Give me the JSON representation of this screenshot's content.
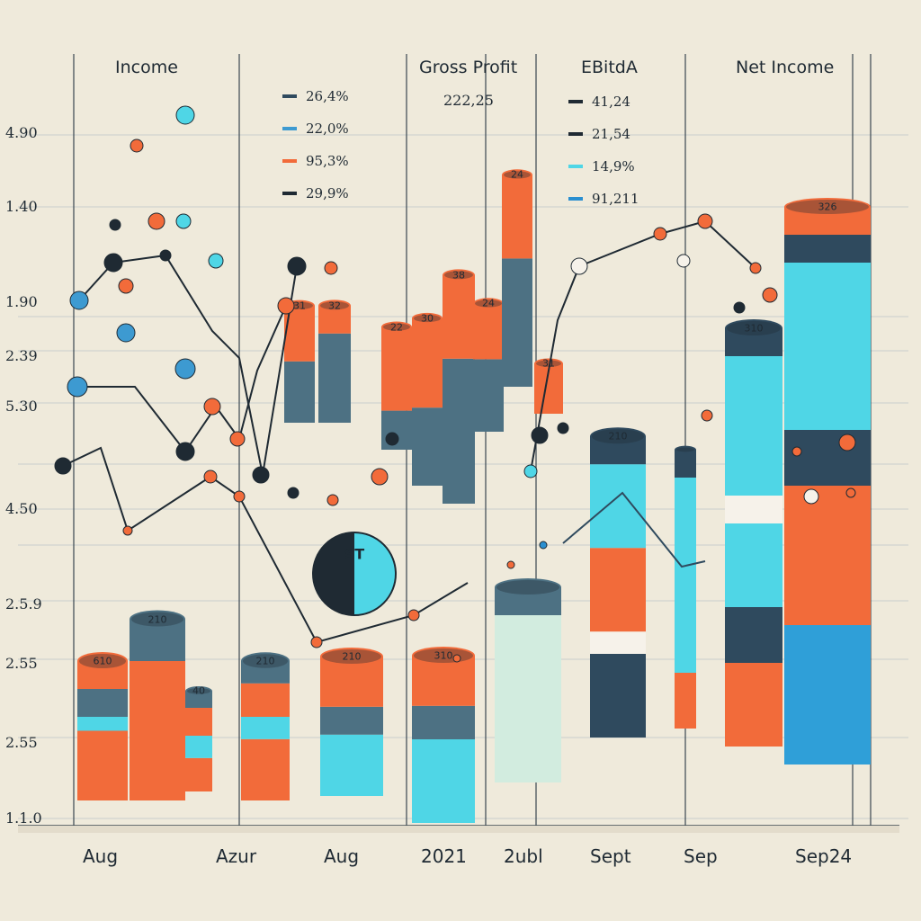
{
  "chart_data": {
    "type": "bar",
    "panels": [
      "Income",
      "Gross Profit",
      "EBitdA",
      "Net Income"
    ],
    "panel_value": "222,25",
    "y_tick_labels": [
      "4.90",
      "1.40",
      "1.90",
      "2.39",
      "5.30",
      "4.50",
      "2.5.9",
      "2.55",
      "2.55",
      "1.1.0"
    ],
    "x_tick_labels": [
      "Aug",
      "Azur",
      "Aug",
      "2021",
      "2ubl",
      "Sept",
      "Sep",
      "Sep24"
    ],
    "legend_left": [
      {
        "label": "26,4%",
        "color": "#2f4a5e"
      },
      {
        "label": "22,0%",
        "color": "#3d9ad1"
      },
      {
        "label": "95,3%",
        "color": "#f26b3a"
      },
      {
        "label": "29,9%",
        "color": "#1f2a33"
      }
    ],
    "legend_right": [
      {
        "label": "41,24",
        "color": "#1f2a33"
      },
      {
        "label": "21,54",
        "color": "#1f2a33"
      },
      {
        "label": "14,9%",
        "color": "#4fd6e6"
      },
      {
        "label": "91,211",
        "color": "#2a8fd0"
      }
    ],
    "bars": [
      {
        "x": "Aug",
        "label": "610",
        "segments": [
          {
            "value": 25,
            "color": "#f26b3a"
          },
          {
            "value": 5,
            "color": "#4fd6e6"
          },
          {
            "value": 10,
            "color": "#4d7183"
          },
          {
            "value": 10,
            "color": "#f26b3a"
          }
        ]
      },
      {
        "x": "Aug",
        "label": "210",
        "segments": [
          {
            "value": 50,
            "color": "#f26b3a"
          },
          {
            "value": 5,
            "color": "#4d7183"
          },
          {
            "value": 10,
            "color": "#4d7183"
          }
        ]
      },
      {
        "x": "Azur",
        "label": "40",
        "segments": [
          {
            "value": 12,
            "color": "#f26b3a"
          },
          {
            "value": 8,
            "color": "#4fd6e6"
          },
          {
            "value": 10,
            "color": "#f26b3a"
          },
          {
            "value": 6,
            "color": "#4d7183"
          }
        ]
      },
      {
        "x": "Azur",
        "label": "210",
        "segments": [
          {
            "value": 22,
            "color": "#f26b3a"
          },
          {
            "value": 8,
            "color": "#4fd6e6"
          },
          {
            "value": 12,
            "color": "#f26b3a"
          },
          {
            "value": 8,
            "color": "#4d7183"
          }
        ]
      },
      {
        "x": "Aug",
        "label": "210",
        "segments": [
          {
            "value": 22,
            "color": "#4fd6e6"
          },
          {
            "value": 10,
            "color": "#4d7183"
          },
          {
            "value": 18,
            "color": "#f26b3a"
          }
        ]
      },
      {
        "x": "2021",
        "label": "31",
        "segments": [
          {
            "value": 22,
            "color": "#4d7183"
          },
          {
            "value": 20,
            "color": "#f26b3a"
          }
        ]
      },
      {
        "x": "2021",
        "label": "310",
        "segments": [
          {
            "value": 30,
            "color": "#4fd6e6"
          },
          {
            "value": 12,
            "color": "#4d7183"
          },
          {
            "value": 18,
            "color": "#f26b3a"
          }
        ]
      },
      {
        "x": "2021",
        "label": "32",
        "segments": [
          {
            "value": 32,
            "color": "#4d7183"
          },
          {
            "value": 10,
            "color": "#f26b3a"
          }
        ]
      },
      {
        "x": "2021",
        "label": "22",
        "segments": [
          {
            "value": 14,
            "color": "#4d7183"
          },
          {
            "value": 30,
            "color": "#f26b3a"
          }
        ]
      },
      {
        "x": "2021",
        "label": "30",
        "segments": [
          {
            "value": 28,
            "color": "#4d7183"
          },
          {
            "value": 32,
            "color": "#f26b3a"
          }
        ]
      },
      {
        "x": "2021",
        "label": "38",
        "segments": [
          {
            "value": 52,
            "color": "#4d7183"
          },
          {
            "value": 30,
            "color": "#f26b3a"
          }
        ]
      },
      {
        "x": "2ubl",
        "label": "24",
        "segments": [
          {
            "value": 26,
            "color": "#4d7183"
          },
          {
            "value": 20,
            "color": "#f26b3a"
          }
        ]
      },
      {
        "x": "2ubl",
        "label": "24",
        "segments": [
          {
            "value": 46,
            "color": "#4d7183"
          },
          {
            "value": 30,
            "color": "#f26b3a"
          }
        ]
      },
      {
        "x": "2ubl",
        "label": "31",
        "segments": [
          {
            "value": 18,
            "color": "#f26b3a"
          }
        ]
      },
      {
        "x": "2ubl",
        "label": "",
        "segments": [
          {
            "value": 60,
            "color": "#d2ecdf"
          },
          {
            "value": 10,
            "color": "#4d7183"
          }
        ]
      },
      {
        "x": "Sept",
        "label": "210",
        "segments": [
          {
            "value": 30,
            "color": "#2f4a5e"
          },
          {
            "value": 8,
            "color": "#f6f2ea"
          },
          {
            "value": 30,
            "color": "#f26b3a"
          },
          {
            "value": 30,
            "color": "#4fd6e6"
          },
          {
            "value": 10,
            "color": "#2f4a5e"
          }
        ]
      },
      {
        "x": "Sep",
        "label": "",
        "segments": [
          {
            "value": 20,
            "color": "#f26b3a"
          },
          {
            "value": 70,
            "color": "#4fd6e6"
          },
          {
            "value": 10,
            "color": "#2f4a5e"
          }
        ]
      },
      {
        "x": "Sep24",
        "label": "310",
        "segments": [
          {
            "value": 30,
            "color": "#f26b3a"
          },
          {
            "value": 20,
            "color": "#2f4a5e"
          },
          {
            "value": 30,
            "color": "#4fd6e6"
          },
          {
            "value": 10,
            "color": "#f6f2ea"
          },
          {
            "value": 50,
            "color": "#4fd6e6"
          },
          {
            "value": 10,
            "color": "#2f4a5e"
          }
        ]
      },
      {
        "x": "Sep24",
        "label": "326",
        "segments": [
          {
            "value": 50,
            "color": "#2f9fd8"
          },
          {
            "value": 50,
            "color": "#f26b3a"
          },
          {
            "value": 20,
            "color": "#2f4a5e"
          },
          {
            "value": 60,
            "color": "#4fd6e6"
          },
          {
            "value": 10,
            "color": "#2f4a5e"
          },
          {
            "value": 10,
            "color": "#f26b3a"
          }
        ]
      }
    ],
    "badge": "ST",
    "grid": true,
    "colors": {
      "background": "#efeadb",
      "teal": "#4d7183",
      "orange": "#f26b3a",
      "cyan": "#4fd6e6",
      "navy": "#1f2a33"
    }
  }
}
